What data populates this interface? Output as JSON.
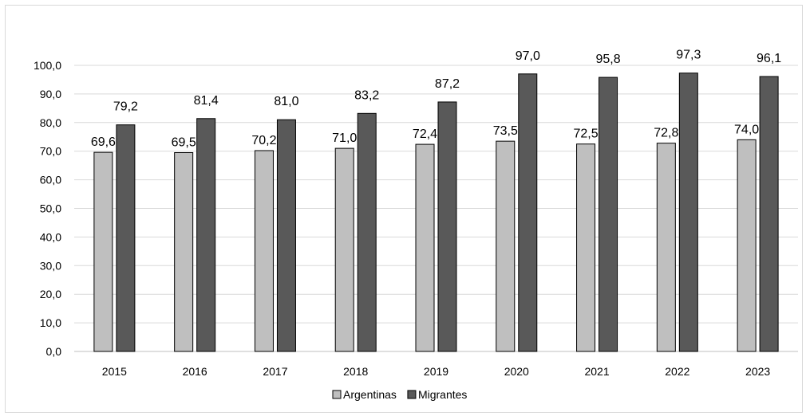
{
  "chart_data": {
    "type": "bar",
    "categories": [
      "2015",
      "2016",
      "2017",
      "2018",
      "2019",
      "2020",
      "2021",
      "2022",
      "2023"
    ],
    "series": [
      {
        "name": "Argentinas",
        "color": "#bfbfbf",
        "values": [
          69.6,
          69.5,
          70.2,
          71.0,
          72.4,
          73.5,
          72.5,
          72.8,
          74.0
        ],
        "labels": [
          "69,6",
          "69,5",
          "70,2",
          "71,0",
          "72,4",
          "73,5",
          "72,5",
          "72,8",
          "74,0"
        ]
      },
      {
        "name": "Migrantes",
        "color": "#595959",
        "values": [
          79.2,
          81.4,
          81.0,
          83.2,
          87.2,
          97.0,
          95.8,
          97.3,
          96.1
        ],
        "labels": [
          "79,2",
          "81,4",
          "81,0",
          "83,2",
          "87,2",
          "97,0",
          "95,8",
          "97,3",
          "96,1"
        ]
      }
    ],
    "y_ticks": [
      "0,0",
      "10,0",
      "20,0",
      "30,0",
      "40,0",
      "50,0",
      "60,0",
      "70,0",
      "80,0",
      "90,0",
      "100,0"
    ],
    "ylim": [
      0,
      100
    ],
    "grid": true,
    "legend_position": "bottom"
  }
}
